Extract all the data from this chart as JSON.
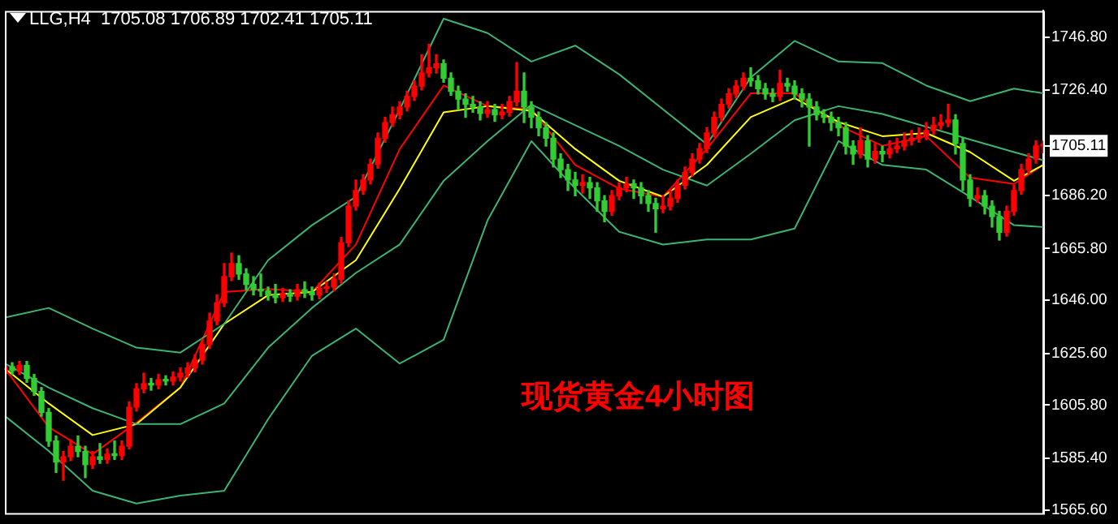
{
  "chart_data": {
    "type": "candlestick",
    "title": "LLG,H4  1705.08 1706.89 1702.41 1705.11",
    "annotations": [
      "现货黄金4小时图"
    ],
    "categories": [
      null,
      null,
      null,
      null,
      null,
      null,
      null,
      null,
      null,
      null,
      null,
      null,
      null,
      null,
      null,
      null,
      null,
      null,
      null,
      null,
      null,
      null,
      null,
      null,
      null,
      null,
      null,
      null,
      null,
      null,
      null,
      null,
      null,
      null,
      null,
      null,
      null,
      null,
      null,
      null,
      null,
      null,
      null,
      null,
      null,
      null,
      null,
      null,
      null,
      null,
      null,
      null,
      null,
      null,
      null,
      null,
      null,
      null,
      null,
      null,
      null,
      null,
      null,
      null,
      null,
      null,
      null,
      null,
      null,
      null,
      null,
      null,
      null,
      null,
      null,
      null,
      null,
      null,
      null,
      null,
      null,
      null,
      null,
      null,
      null,
      null,
      null,
      null,
      null,
      null,
      null,
      null,
      null,
      null,
      null,
      null,
      null,
      null,
      null,
      null,
      null,
      null,
      null,
      null,
      null,
      null,
      null,
      null,
      null,
      null,
      null,
      null,
      null,
      null,
      null,
      null,
      null,
      null,
      null,
      null,
      null,
      null,
      null,
      null,
      null,
      null,
      null,
      null,
      null,
      null,
      null,
      null,
      null,
      null,
      null,
      null,
      null,
      null,
      null,
      null,
      null,
      null,
      null
    ],
    "ohlc": [
      [
        1618.0,
        1622.0,
        1616.5,
        1620.5
      ],
      [
        1620.5,
        1622.0,
        1617.5,
        1619.0
      ],
      [
        1619.0,
        1622.5,
        1617.5,
        1621.0
      ],
      [
        1621.0,
        1622.5,
        1614.5,
        1616.0
      ],
      [
        1616.0,
        1617.5,
        1609.5,
        1611.0
      ],
      [
        1611.0,
        1612.5,
        1601.5,
        1603.0
      ],
      [
        1603.0,
        1604.5,
        1590.0,
        1592.0
      ],
      [
        1592.0,
        1594.0,
        1580.0,
        1584.0
      ],
      [
        1584.0,
        1588.0,
        1577.0,
        1586.0
      ],
      [
        1586.0,
        1592.5,
        1584.5,
        1590.0
      ],
      [
        1590.0,
        1594.0,
        1586.0,
        1588.0
      ],
      [
        1588.0,
        1590.0,
        1578.0,
        1583.0
      ],
      [
        1583.0,
        1588.0,
        1581.5,
        1586.0
      ],
      [
        1586.0,
        1591.0,
        1583.5,
        1585.0
      ],
      [
        1585.0,
        1589.0,
        1583.5,
        1587.0
      ],
      [
        1587.0,
        1592.0,
        1585.0,
        1586.5
      ],
      [
        1586.5,
        1592.0,
        1585.0,
        1590.0
      ],
      [
        1590.0,
        1607.0,
        1589.0,
        1605.0
      ],
      [
        1605.0,
        1614.0,
        1603.5,
        1612.0
      ],
      [
        1612.0,
        1618.0,
        1610.5,
        1614.0
      ],
      [
        1614.0,
        1616.0,
        1611.5,
        1613.5
      ],
      [
        1613.5,
        1617.5,
        1612.0,
        1615.5
      ],
      [
        1615.5,
        1617.0,
        1613.5,
        1615.0
      ],
      [
        1615.0,
        1618.5,
        1613.5,
        1616.5
      ],
      [
        1616.5,
        1620.0,
        1615.0,
        1618.0
      ],
      [
        1618.0,
        1622.0,
        1616.5,
        1620.0
      ],
      [
        1620.0,
        1625.0,
        1618.5,
        1623.0
      ],
      [
        1623.0,
        1631.0,
        1621.5,
        1629.0
      ],
      [
        1629.0,
        1641.0,
        1627.5,
        1638.0
      ],
      [
        1638.0,
        1648.0,
        1636.5,
        1645.0
      ],
      [
        1645.0,
        1660.0,
        1643.5,
        1655.0
      ],
      [
        1655.0,
        1664.0,
        1653.5,
        1660.0
      ],
      [
        1660.0,
        1663.0,
        1654.0,
        1656.0
      ],
      [
        1656.0,
        1658.0,
        1650.0,
        1652.0
      ],
      [
        1652.0,
        1655.0,
        1648.0,
        1650.0
      ],
      [
        1650.0,
        1656.0,
        1647.5,
        1649.5
      ],
      [
        1649.5,
        1651.0,
        1646.0,
        1648.0
      ],
      [
        1648.0,
        1652.0,
        1645.0,
        1647.0
      ],
      [
        1647.0,
        1650.5,
        1645.5,
        1648.5
      ],
      [
        1648.5,
        1650.0,
        1645.5,
        1647.5
      ],
      [
        1647.5,
        1652.0,
        1646.0,
        1650.0
      ],
      [
        1650.0,
        1653.0,
        1647.0,
        1649.0
      ],
      [
        1649.0,
        1651.0,
        1646.0,
        1648.0
      ],
      [
        1648.0,
        1652.5,
        1646.5,
        1650.5
      ],
      [
        1650.5,
        1653.0,
        1649.0,
        1651.0
      ],
      [
        1651.0,
        1656.0,
        1649.5,
        1654.0
      ],
      [
        1654.0,
        1670.0,
        1652.5,
        1668.0
      ],
      [
        1668.0,
        1684.0,
        1666.5,
        1682.0
      ],
      [
        1682.0,
        1692.0,
        1680.5,
        1688.0
      ],
      [
        1688.0,
        1694.0,
        1686.5,
        1692.0
      ],
      [
        1692.0,
        1700.0,
        1690.5,
        1698.0
      ],
      [
        1698.0,
        1710.0,
        1696.5,
        1708.0
      ],
      [
        1708.0,
        1716.0,
        1706.5,
        1714.0
      ],
      [
        1714.0,
        1720.0,
        1712.5,
        1717.0
      ],
      [
        1717.0,
        1722.0,
        1715.5,
        1720.0
      ],
      [
        1720.0,
        1726.0,
        1718.5,
        1724.0
      ],
      [
        1724.0,
        1730.0,
        1722.5,
        1728.0
      ],
      [
        1728.0,
        1740.0,
        1726.5,
        1733.0
      ],
      [
        1733.0,
        1744.0,
        1731.5,
        1735.0
      ],
      [
        1735.0,
        1740.0,
        1733.0,
        1736.5
      ],
      [
        1736.5,
        1738.0,
        1729.5,
        1731.0
      ],
      [
        1731.0,
        1733.0,
        1724.5,
        1726.0
      ],
      [
        1726.0,
        1728.0,
        1719.0,
        1723.0
      ],
      [
        1723.0,
        1725.0,
        1716.0,
        1721.0
      ],
      [
        1721.0,
        1724.0,
        1718.0,
        1720.0
      ],
      [
        1720.0,
        1722.0,
        1715.0,
        1717.5
      ],
      [
        1717.5,
        1722.0,
        1716.0,
        1719.0
      ],
      [
        1719.0,
        1721.0,
        1714.5,
        1717.0
      ],
      [
        1717.0,
        1721.0,
        1715.5,
        1718.0
      ],
      [
        1718.0,
        1724.0,
        1716.5,
        1722.0
      ],
      [
        1722.0,
        1737.0,
        1720.5,
        1726.0
      ],
      [
        1726.0,
        1733.0,
        1714.0,
        1720.0
      ],
      [
        1720.0,
        1722.0,
        1712.0,
        1716.0
      ],
      [
        1716.0,
        1718.0,
        1709.0,
        1712.0
      ],
      [
        1712.0,
        1714.0,
        1705.0,
        1708.0
      ],
      [
        1708.0,
        1710.0,
        1697.0,
        1700.0
      ],
      [
        1700.0,
        1702.0,
        1693.0,
        1696.0
      ],
      [
        1696.0,
        1698.0,
        1688.0,
        1692.0
      ],
      [
        1692.0,
        1695.0,
        1686.0,
        1690.0
      ],
      [
        1690.0,
        1694.0,
        1687.0,
        1691.0
      ],
      [
        1691.0,
        1693.0,
        1685.0,
        1689.0
      ],
      [
        1689.0,
        1691.0,
        1680.0,
        1684.0
      ],
      [
        1684.0,
        1686.0,
        1676.0,
        1680.0
      ],
      [
        1680.0,
        1688.0,
        1678.5,
        1686.0
      ],
      [
        1686.0,
        1691.0,
        1684.5,
        1689.0
      ],
      [
        1689.0,
        1693.0,
        1687.5,
        1690.5
      ],
      [
        1690.5,
        1692.0,
        1685.0,
        1689.0
      ],
      [
        1689.0,
        1691.0,
        1683.0,
        1686.0
      ],
      [
        1686.0,
        1688.0,
        1680.0,
        1683.0
      ],
      [
        1683.0,
        1685.0,
        1672.0,
        1681.0
      ],
      [
        1681.0,
        1686.0,
        1679.5,
        1682.0
      ],
      [
        1682.0,
        1688.0,
        1680.5,
        1685.0
      ],
      [
        1685.0,
        1692.0,
        1683.5,
        1690.0
      ],
      [
        1690.0,
        1697.0,
        1688.5,
        1695.0
      ],
      [
        1695.0,
        1702.0,
        1693.5,
        1700.0
      ],
      [
        1700.0,
        1706.0,
        1698.5,
        1704.0
      ],
      [
        1704.0,
        1712.0,
        1702.5,
        1710.0
      ],
      [
        1710.0,
        1718.0,
        1708.5,
        1716.0
      ],
      [
        1716.0,
        1723.0,
        1714.5,
        1721.0
      ],
      [
        1721.0,
        1727.0,
        1719.5,
        1725.0
      ],
      [
        1725.0,
        1730.0,
        1723.5,
        1728.0
      ],
      [
        1728.0,
        1733.0,
        1726.5,
        1731.0
      ],
      [
        1731.0,
        1735.0,
        1728.0,
        1730.0
      ],
      [
        1730.0,
        1732.0,
        1725.0,
        1727.0
      ],
      [
        1727.0,
        1729.0,
        1723.0,
        1725.0
      ],
      [
        1725.0,
        1727.0,
        1722.0,
        1724.0
      ],
      [
        1724.0,
        1734.0,
        1722.5,
        1729.0
      ],
      [
        1729.0,
        1731.0,
        1726.0,
        1728.0
      ],
      [
        1728.0,
        1730.0,
        1723.0,
        1725.0
      ],
      [
        1725.0,
        1727.0,
        1720.0,
        1723.0
      ],
      [
        1723.0,
        1725.0,
        1705.0,
        1720.0
      ],
      [
        1720.0,
        1722.0,
        1715.0,
        1717.0
      ],
      [
        1717.0,
        1719.0,
        1714.0,
        1716.0
      ],
      [
        1716.0,
        1718.0,
        1711.0,
        1714.0
      ],
      [
        1714.0,
        1716.0,
        1709.0,
        1712.0
      ],
      [
        1712.0,
        1714.0,
        1702.0,
        1705.0
      ],
      [
        1705.0,
        1707.0,
        1698.0,
        1702.0
      ],
      [
        1702.0,
        1712.0,
        1700.5,
        1707.0
      ],
      [
        1707.0,
        1709.0,
        1697.0,
        1700.0
      ],
      [
        1700.0,
        1706.0,
        1698.5,
        1703.0
      ],
      [
        1703.0,
        1705.0,
        1699.0,
        1702.0
      ],
      [
        1702.0,
        1707.0,
        1700.5,
        1704.0
      ],
      [
        1704.0,
        1708.0,
        1702.5,
        1705.0
      ],
      [
        1705.0,
        1710.0,
        1703.5,
        1707.0
      ],
      [
        1707.0,
        1711.0,
        1705.5,
        1708.0
      ],
      [
        1708.0,
        1712.0,
        1706.5,
        1709.0
      ],
      [
        1709.0,
        1714.0,
        1707.5,
        1711.0
      ],
      [
        1711.0,
        1716.0,
        1709.5,
        1713.0
      ],
      [
        1713.0,
        1717.0,
        1711.5,
        1714.0
      ],
      [
        1714.0,
        1721.0,
        1712.5,
        1715.0
      ],
      [
        1715.0,
        1717.0,
        1702.0,
        1706.0
      ],
      [
        1706.0,
        1708.0,
        1688.0,
        1692.0
      ],
      [
        1692.0,
        1694.0,
        1682.0,
        1685.0
      ],
      [
        1685.0,
        1689.0,
        1683.5,
        1686.0
      ],
      [
        1686.0,
        1688.0,
        1679.0,
        1682.0
      ],
      [
        1682.0,
        1684.0,
        1674.0,
        1678.0
      ],
      [
        1678.0,
        1680.0,
        1669.0,
        1672.0
      ],
      [
        1672.0,
        1682.0,
        1670.5,
        1680.0
      ],
      [
        1680.0,
        1690.0,
        1678.5,
        1688.0
      ],
      [
        1688.0,
        1698.0,
        1686.5,
        1696.0
      ],
      [
        1696.0,
        1702.0,
        1694.5,
        1700.0
      ],
      [
        1700.0,
        1707.0,
        1698.5,
        1705.08
      ],
      [
        1705.08,
        1706.89,
        1702.41,
        1705.11
      ]
    ],
    "series": [
      {
        "type": "line",
        "color": "#3cb371",
        "values": [
          1639.3,
          null,
          null,
          null,
          null,
          null,
          1643.0,
          null,
          null,
          null,
          null,
          null,
          1635.1,
          null,
          null,
          null,
          null,
          null,
          1627.8,
          null,
          null,
          null,
          null,
          null,
          1625.9,
          null,
          null,
          null,
          null,
          null,
          1636.9,
          null,
          null,
          null,
          null,
          null,
          1661.3,
          null,
          null,
          null,
          null,
          null,
          1674.7,
          null,
          null,
          null,
          null,
          null,
          1685.6,
          null,
          null,
          null,
          null,
          null,
          1719.1,
          null,
          null,
          null,
          null,
          null,
          1753.8,
          null,
          null,
          null,
          null,
          null,
          1748.3,
          null,
          null,
          null,
          null,
          null,
          1737.4,
          null,
          null,
          null,
          null,
          null,
          1743.5,
          null,
          null,
          null,
          null,
          null,
          1732.5,
          null,
          null,
          null,
          null,
          null,
          1719.1,
          null,
          null,
          null,
          null,
          null,
          1705.7,
          null,
          null,
          null,
          null,
          null,
          1731.3,
          null,
          null,
          null,
          null,
          null,
          1745.3,
          null,
          null,
          null,
          null,
          null,
          1737.4,
          null,
          null,
          null,
          null,
          null,
          1736.8,
          null,
          null,
          null,
          null,
          null,
          1728.2,
          null,
          null,
          null,
          null,
          null,
          1722.2,
          null,
          null,
          null,
          null,
          null,
          1727.0,
          null,
          null,
          null,
          1725.2
        ]
      },
      {
        "type": "line",
        "color": "#3cb371",
        "values": [
          1621.7,
          null,
          null,
          null,
          null,
          null,
          1612.5,
          null,
          null,
          null,
          null,
          null,
          1604.6,
          null,
          null,
          null,
          null,
          null,
          1598.5,
          null,
          null,
          null,
          null,
          null,
          1598.5,
          null,
          null,
          null,
          null,
          null,
          1606.4,
          null,
          null,
          null,
          null,
          null,
          1627.8,
          null,
          null,
          null,
          null,
          null,
          1643.0,
          null,
          null,
          null,
          null,
          null,
          1656.4,
          null,
          null,
          null,
          null,
          null,
          1667.3,
          null,
          null,
          null,
          null,
          null,
          1691.7,
          null,
          null,
          null,
          null,
          null,
          1706.9,
          null,
          null,
          null,
          null,
          null,
          1720.9,
          null,
          null,
          null,
          null,
          null,
          1713.0,
          null,
          null,
          null,
          null,
          null,
          1705.1,
          null,
          null,
          null,
          null,
          null,
          1696.0,
          null,
          null,
          null,
          null,
          null,
          1689.9,
          null,
          null,
          null,
          null,
          null,
          1702.1,
          null,
          null,
          null,
          null,
          null,
          1714.9,
          null,
          null,
          null,
          null,
          null,
          1720.3,
          null,
          null,
          null,
          null,
          null,
          1717.3,
          null,
          null,
          null,
          null,
          null,
          1712.4,
          null,
          null,
          null,
          null,
          null,
          1707.5,
          null,
          null,
          null,
          null,
          null,
          1702.7,
          null,
          null,
          null,
          1699.6
        ]
      },
      {
        "type": "line",
        "color": "#3cb371",
        "values": [
          1601.6,
          null,
          null,
          null,
          null,
          null,
          1588.2,
          null,
          null,
          null,
          null,
          null,
          1573.0,
          null,
          null,
          null,
          null,
          null,
          1568.1,
          null,
          null,
          null,
          null,
          null,
          1571.1,
          null,
          null,
          null,
          null,
          null,
          1573.0,
          null,
          null,
          null,
          null,
          null,
          1600.4,
          null,
          null,
          null,
          null,
          null,
          1624.7,
          null,
          null,
          null,
          null,
          null,
          1635.1,
          null,
          null,
          null,
          null,
          null,
          1621.7,
          null,
          null,
          null,
          null,
          null,
          1630.8,
          null,
          null,
          null,
          null,
          null,
          1676.5,
          null,
          null,
          null,
          null,
          null,
          1706.9,
          null,
          null,
          null,
          null,
          null,
          1688.7,
          null,
          null,
          null,
          null,
          null,
          1672.2,
          null,
          null,
          null,
          null,
          null,
          1667.3,
          null,
          null,
          null,
          null,
          null,
          1669.2,
          null,
          null,
          null,
          null,
          null,
          1669.2,
          null,
          null,
          null,
          null,
          null,
          1673.4,
          null,
          null,
          null,
          null,
          null,
          1706.9,
          null,
          null,
          null,
          null,
          null,
          1697.8,
          null,
          null,
          null,
          null,
          null,
          1696.0,
          null,
          null,
          null,
          null,
          null,
          1685.6,
          null,
          null,
          null,
          null,
          null,
          1674.7,
          null,
          null,
          null,
          1674.0
        ]
      },
      {
        "type": "line",
        "color": "#ffff00",
        "values": [
          1619.8,
          null,
          null,
          null,
          null,
          null,
          1606.4,
          null,
          null,
          null,
          null,
          null,
          1594.3,
          null,
          null,
          null,
          null,
          null,
          1598.5,
          null,
          null,
          null,
          null,
          null,
          1612.5,
          null,
          null,
          null,
          null,
          null,
          1636.9,
          null,
          null,
          null,
          null,
          null,
          1647.9,
          null,
          null,
          null,
          null,
          null,
          1649.1,
          null,
          null,
          null,
          null,
          null,
          1661.3,
          null,
          null,
          null,
          null,
          null,
          1688.7,
          null,
          null,
          null,
          null,
          null,
          1717.9,
          null,
          null,
          null,
          null,
          null,
          1720.3,
          null,
          null,
          null,
          null,
          null,
          1718.5,
          null,
          null,
          null,
          null,
          null,
          1703.9,
          null,
          null,
          null,
          null,
          null,
          1691.7,
          null,
          null,
          null,
          null,
          null,
          1685.6,
          null,
          null,
          null,
          null,
          null,
          1697.8,
          null,
          null,
          null,
          null,
          null,
          1716.1,
          null,
          null,
          null,
          null,
          null,
          1723.4,
          null,
          null,
          null,
          null,
          null,
          1714.2,
          null,
          null,
          null,
          null,
          null,
          1708.8,
          null,
          null,
          null,
          null,
          null,
          1710.0,
          null,
          null,
          null,
          null,
          null,
          1702.7,
          null,
          null,
          null,
          null,
          null,
          1691.7,
          null,
          null,
          null,
          1697.8
        ]
      },
      {
        "type": "line",
        "color": "#ff0000",
        "values": [
          1619.8,
          null,
          null,
          null,
          null,
          null,
          1597.3,
          null,
          null,
          null,
          null,
          null,
          1587.0,
          null,
          null,
          null,
          null,
          null,
          1599.1,
          null,
          null,
          null,
          null,
          null,
          1612.5,
          null,
          null,
          null,
          null,
          null,
          1649.1,
          null,
          null,
          null,
          null,
          null,
          1650.3,
          null,
          null,
          null,
          null,
          null,
          1649.1,
          null,
          null,
          null,
          null,
          null,
          1667.3,
          null,
          null,
          null,
          null,
          null,
          1703.9,
          null,
          null,
          null,
          null,
          null,
          1728.2,
          null,
          null,
          null,
          null,
          null,
          1720.3,
          null,
          null,
          null,
          null,
          null,
          1719.1,
          null,
          null,
          null,
          null,
          null,
          1697.8,
          null,
          null,
          null,
          null,
          null,
          1688.7,
          null,
          null,
          null,
          null,
          null,
          1685.6,
          null,
          null,
          null,
          null,
          null,
          1703.9,
          null,
          null,
          null,
          null,
          null,
          1725.2,
          null,
          null,
          null,
          null,
          null,
          1725.2,
          null,
          null,
          null,
          null,
          null,
          1713.0,
          null,
          null,
          null,
          null,
          null,
          1705.1,
          null,
          null,
          null,
          null,
          null,
          1708.8,
          null,
          null,
          null,
          null,
          null,
          1692.9,
          null,
          null,
          null,
          null,
          null,
          1690.5,
          null,
          null,
          null,
          1697.8
        ]
      }
    ],
    "ylim": [
      1564.4,
      1756.8
    ],
    "yticks": [
      {
        "value": 1565.6,
        "label": "1565.60"
      },
      {
        "value": 1585.4,
        "label": "1585.40"
      },
      {
        "value": 1605.8,
        "label": "1605.80"
      },
      {
        "value": 1625.6,
        "label": "1625.60"
      },
      {
        "value": 1646.0,
        "label": "1646.00"
      },
      {
        "value": 1665.8,
        "label": "1665.80"
      },
      {
        "value": 1686.2,
        "label": "1686.20"
      },
      {
        "value": 1705.11,
        "label": "1705.11"
      },
      {
        "value": 1726.4,
        "label": "1726.40"
      },
      {
        "value": 1746.8,
        "label": "1746.80"
      }
    ],
    "grid": false,
    "legend": false,
    "tick_labels": "y"
  }
}
